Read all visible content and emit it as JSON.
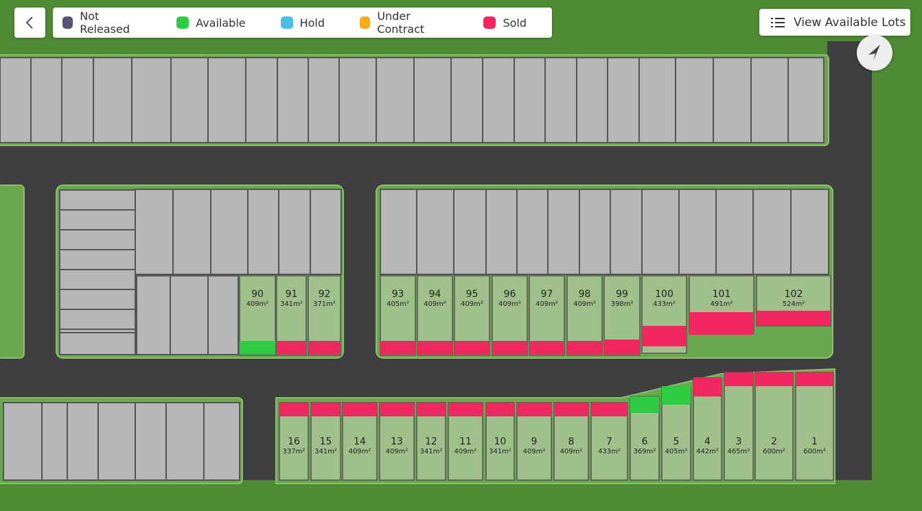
{
  "legend": {
    "items": [
      {
        "label": "Not Released",
        "color": "#575479"
      },
      {
        "label": "Available",
        "color": "#2ecc40"
      },
      {
        "label": "Hold",
        "color": "#4bbde8"
      },
      {
        "label": "Under Contract",
        "color": "#f5ac1b"
      },
      {
        "label": "Sold",
        "color": "#f0285f"
      }
    ]
  },
  "button": {
    "label": "View Available Lots"
  },
  "lots": [
    {
      "number": "90",
      "area": "409m²",
      "status": 1
    },
    {
      "number": "91",
      "area": "341m²",
      "status": 4
    },
    {
      "number": "92",
      "area": "371m²",
      "status": 4
    },
    {
      "number": "93",
      "area": "405m²",
      "status": 4
    },
    {
      "number": "94",
      "area": "409m²",
      "status": 4
    },
    {
      "number": "95",
      "area": "409m²",
      "status": 4
    },
    {
      "number": "96",
      "area": "409m²",
      "status": 4
    },
    {
      "number": "97",
      "area": "409m²",
      "status": 4
    },
    {
      "number": "98",
      "area": "409m²",
      "status": 4
    },
    {
      "number": "99",
      "area": "398m²",
      "status": 4
    },
    {
      "number": "100",
      "area": "433m²",
      "status": 4
    },
    {
      "number": "101",
      "area": "491m²",
      "status": 4
    },
    {
      "number": "102",
      "area": "524m²",
      "status": 4
    },
    {
      "number": "16",
      "area": "337m²",
      "status": 4
    },
    {
      "number": "15",
      "area": "341m²",
      "status": 4
    },
    {
      "number": "14",
      "area": "409m²",
      "status": 4
    },
    {
      "number": "13",
      "area": "409m²",
      "status": 4
    },
    {
      "number": "12",
      "area": "341m²",
      "status": 4
    },
    {
      "number": "11",
      "area": "409m²",
      "status": 4
    },
    {
      "number": "10",
      "area": "341m²",
      "status": 4
    },
    {
      "number": "9",
      "area": "409m²",
      "status": 4
    },
    {
      "number": "8",
      "area": "409m²",
      "status": 4
    },
    {
      "number": "7",
      "area": "433m²",
      "status": 4
    },
    {
      "number": "6",
      "area": "369m²",
      "status": 1
    },
    {
      "number": "5",
      "area": "405m²",
      "status": 1
    },
    {
      "number": "4",
      "area": "442m²",
      "status": 4
    },
    {
      "number": "3",
      "area": "465m²",
      "status": 4
    },
    {
      "number": "2",
      "area": "600m²",
      "status": 4
    },
    {
      "number": "1",
      "area": "600m²",
      "status": 4
    }
  ]
}
